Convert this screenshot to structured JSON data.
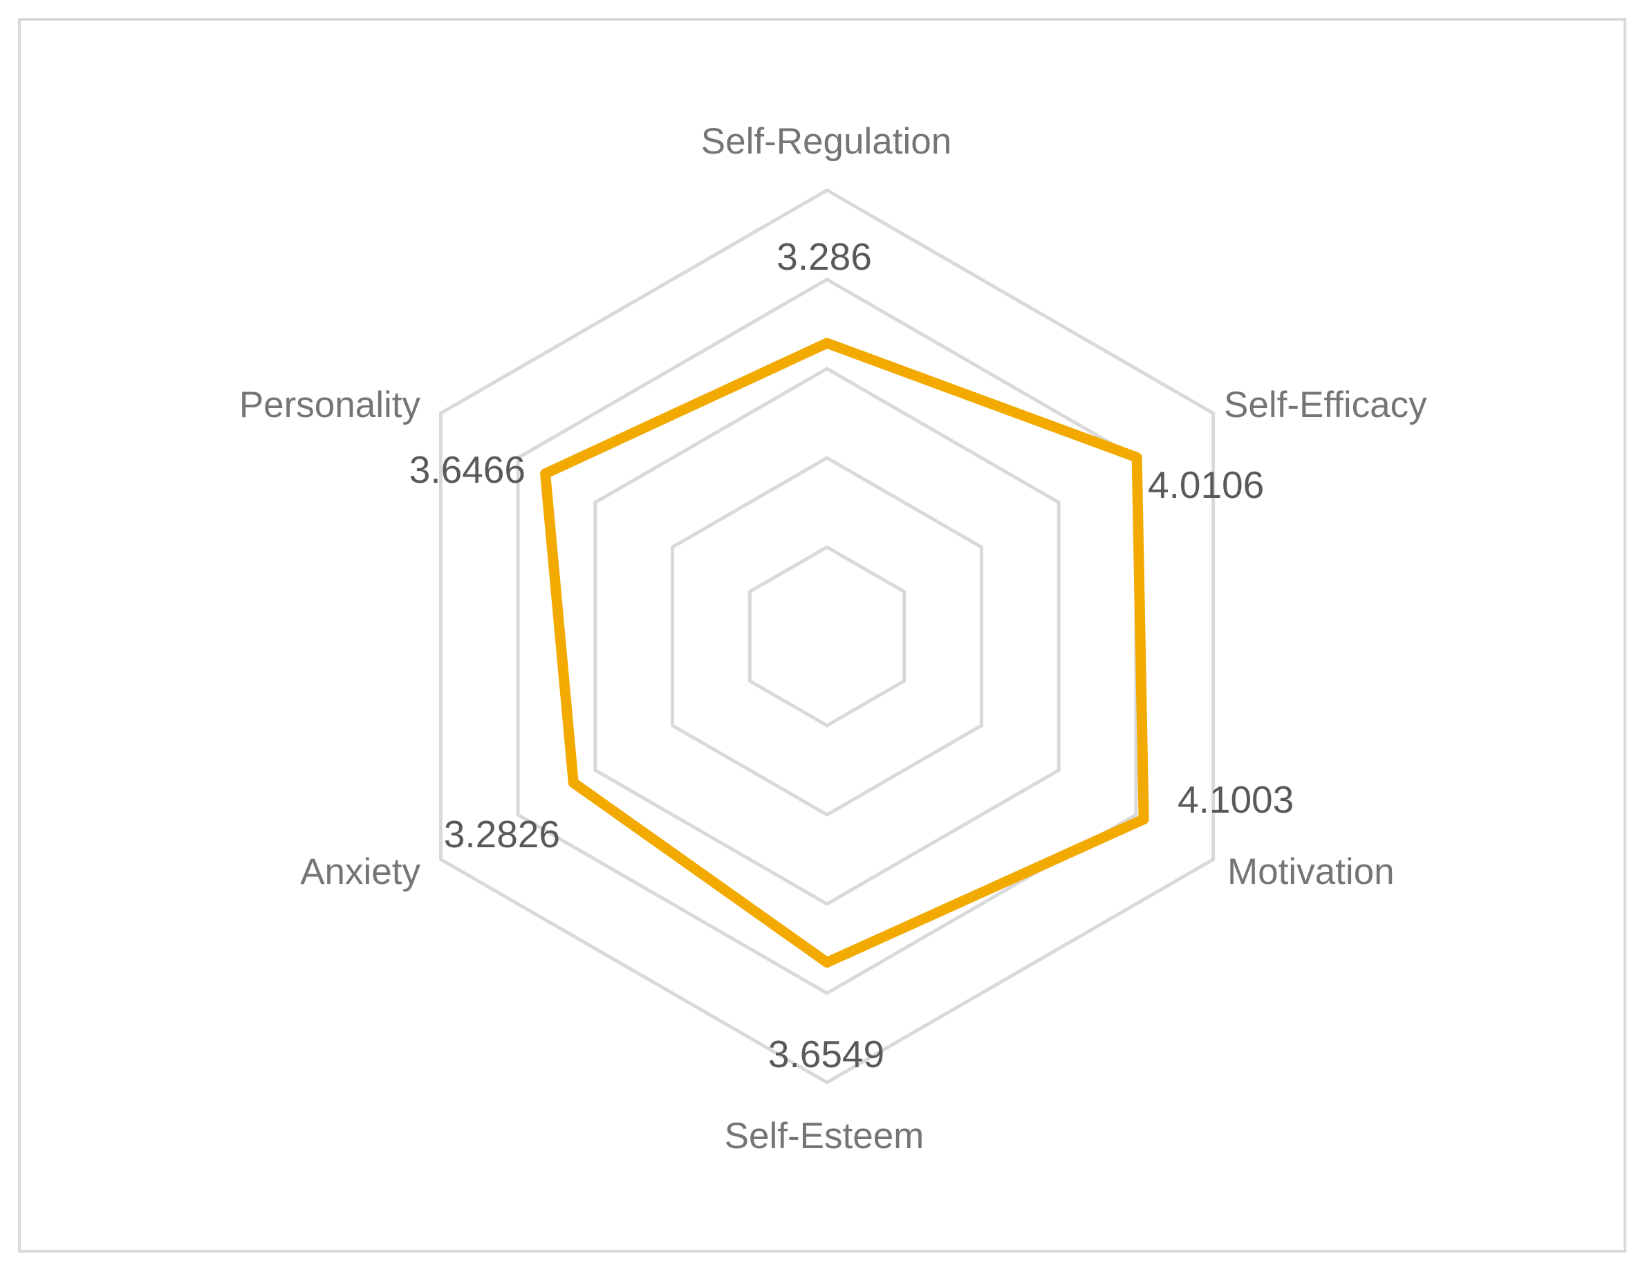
{
  "chart_data": {
    "type": "radar",
    "categories": [
      "Self-Regulation",
      "Self-Efficacy",
      "Motivation",
      "Self-Esteem",
      "Anxiety",
      "Personality"
    ],
    "series": [
      {
        "values": [
          3.286,
          4.0106,
          4.1003,
          3.6549,
          3.2826,
          3.6466
        ],
        "color": "#F2AA00"
      }
    ],
    "data_labels": [
      "3.286",
      "4.0106",
      "4.1003",
      "3.6549",
      "3.2826",
      "3.6466"
    ],
    "radial_range": [
      0,
      5
    ],
    "grid_levels": 5,
    "grid": true,
    "legend": "none",
    "grid_color": "#D9D9D9",
    "frame_color": "#D9D9D9"
  }
}
